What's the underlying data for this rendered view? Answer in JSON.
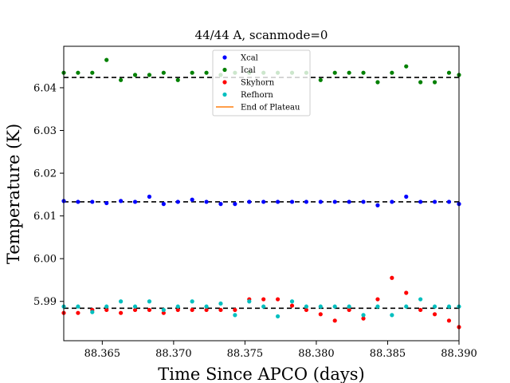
{
  "chart_data": {
    "type": "scatter",
    "title": "44/44 A, scanmode=0",
    "xlabel": "Time Since APCO (days)",
    "ylabel": "Temperature (K)",
    "xlim": [
      88.3623,
      88.39
    ],
    "ylim": [
      5.9808,
      6.0497
    ],
    "xticks": [
      88.365,
      88.37,
      88.375,
      88.38,
      88.385,
      88.39
    ],
    "xtick_labels": [
      "88.365",
      "88.370",
      "88.375",
      "88.380",
      "88.385",
      "88.390"
    ],
    "yticks": [
      5.99,
      6.0,
      6.01,
      6.02,
      6.03,
      6.04
    ],
    "ytick_labels": [
      "5.99",
      "6.00",
      "6.01",
      "6.02",
      "6.03",
      "6.04"
    ],
    "legend_position": "top-center",
    "plateaus": [
      {
        "series": "Ical",
        "y": 6.0424
      },
      {
        "series": "Xcal",
        "y": 6.0133
      },
      {
        "series": "Skyhorn/Refhorn",
        "y": 5.9884
      }
    ],
    "x": [
      88.3623,
      88.3633,
      88.3643,
      88.3653,
      88.3663,
      88.3673,
      88.3683,
      88.3693,
      88.3703,
      88.3713,
      88.3723,
      88.3733,
      88.3743,
      88.3753,
      88.3763,
      88.3773,
      88.3783,
      88.3793,
      88.3803,
      88.3813,
      88.3823,
      88.3833,
      88.3843,
      88.3853,
      88.3863,
      88.3873,
      88.3883,
      88.3893,
      88.39
    ],
    "series": [
      {
        "name": "Xcal",
        "color": "#0000ff",
        "values": [
          6.0135,
          6.0133,
          6.0133,
          6.013,
          6.0135,
          6.0133,
          6.0145,
          6.0128,
          6.0133,
          6.0138,
          6.0133,
          6.0128,
          6.0128,
          6.0133,
          6.0133,
          6.0133,
          6.0133,
          6.0133,
          6.0133,
          6.0133,
          6.0133,
          6.0133,
          6.0125,
          6.0133,
          6.0145,
          6.0133,
          6.0133,
          6.0133,
          6.0128
        ]
      },
      {
        "name": "Ical",
        "color": "#008000",
        "values": [
          6.0435,
          6.0435,
          6.0435,
          6.0465,
          6.0418,
          6.043,
          6.043,
          6.0435,
          6.0418,
          6.0435,
          6.0435,
          6.043,
          6.0435,
          6.0435,
          6.0435,
          6.0435,
          6.0435,
          6.0435,
          6.0418,
          6.0435,
          6.0435,
          6.0435,
          6.0413,
          6.0435,
          6.045,
          6.0413,
          6.0413,
          6.0435,
          6.043
        ]
      },
      {
        "name": "Skyhorn",
        "color": "#ff0000",
        "values": [
          5.9873,
          5.9873,
          5.988,
          5.988,
          5.9873,
          5.988,
          5.988,
          5.9873,
          5.988,
          5.988,
          5.988,
          5.988,
          5.988,
          5.9905,
          5.9905,
          5.9905,
          5.989,
          5.988,
          5.987,
          5.9855,
          5.988,
          5.986,
          5.9905,
          5.9955,
          5.992,
          5.988,
          5.987,
          5.9855,
          5.984
        ]
      },
      {
        "name": "Refhorn",
        "color": "#00bfbf",
        "values": [
          5.9888,
          5.9888,
          5.9875,
          5.9888,
          5.99,
          5.9888,
          5.99,
          5.988,
          5.9888,
          5.99,
          5.9888,
          5.9895,
          5.9868,
          5.99,
          5.9888,
          5.9865,
          5.99,
          5.9888,
          5.9888,
          5.9888,
          5.9888,
          5.9868,
          5.9888,
          5.9868,
          5.9888,
          5.9905,
          5.9888,
          5.9888,
          5.9888
        ]
      }
    ],
    "end_of_plateau": {
      "name": "End of Plateau",
      "color": "#ff7f0e"
    }
  }
}
